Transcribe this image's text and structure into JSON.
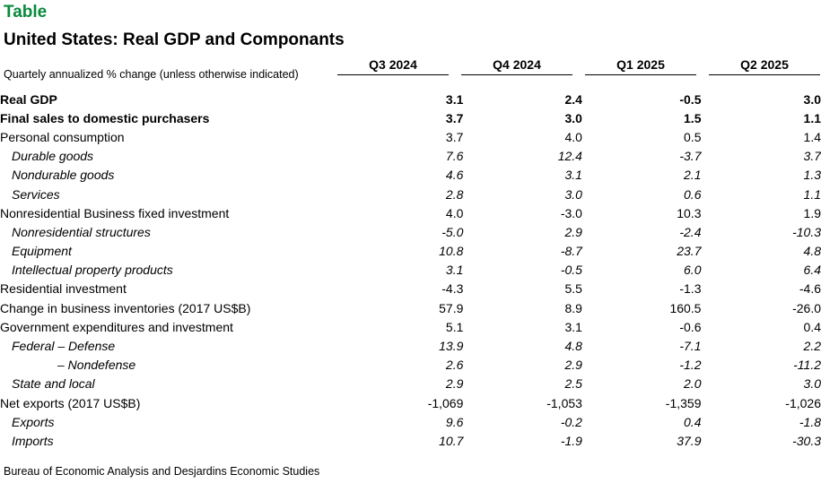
{
  "chart_data": {
    "type": "table",
    "kicker": "Table",
    "title": "United States: Real GDP and Componants",
    "units_note": "Quartely annualized % change (unless otherwise indicated)",
    "columns": [
      "Q3 2024",
      "Q4 2024",
      "Q1 2025",
      "Q2 2025"
    ],
    "rows": [
      {
        "label": "Real GDP",
        "style": "bold",
        "values": [
          "3.1",
          "2.4",
          "-0.5",
          "3.0"
        ]
      },
      {
        "label": "Final sales to domestic purchasers",
        "style": "bold",
        "values": [
          "3.7",
          "3.0",
          "1.5",
          "1.1"
        ]
      },
      {
        "label": "Personal consumption",
        "style": "normal",
        "values": [
          "3.7",
          "4.0",
          "0.5",
          "1.4"
        ]
      },
      {
        "label": "Durable goods",
        "style": "sub",
        "values": [
          "7.6",
          "12.4",
          "-3.7",
          "3.7"
        ]
      },
      {
        "label": "Nondurable goods",
        "style": "sub",
        "values": [
          "4.6",
          "3.1",
          "2.1",
          "1.3"
        ]
      },
      {
        "label": "Services",
        "style": "sub",
        "values": [
          "2.8",
          "3.0",
          "0.6",
          "1.1"
        ]
      },
      {
        "label": "Nonresidential Business fixed investment",
        "style": "normal",
        "values": [
          "4.0",
          "-3.0",
          "10.3",
          "1.9"
        ]
      },
      {
        "label": "Nonresidential structures",
        "style": "sub",
        "values": [
          "-5.0",
          "2.9",
          "-2.4",
          "-10.3"
        ]
      },
      {
        "label": "Equipment",
        "style": "sub",
        "values": [
          "10.8",
          "-8.7",
          "23.7",
          "4.8"
        ]
      },
      {
        "label": "Intellectual property products",
        "style": "sub",
        "values": [
          "3.1",
          "-0.5",
          "6.0",
          "6.4"
        ]
      },
      {
        "label": "Residential investment",
        "style": "normal",
        "values": [
          "-4.3",
          "5.5",
          "-1.3",
          "-4.6"
        ]
      },
      {
        "label": "Change in business inventories (2017 US$B)",
        "style": "normal",
        "values": [
          "57.9",
          "8.9",
          "160.5",
          "-26.0"
        ]
      },
      {
        "label": "Government expenditures and investment",
        "style": "normal",
        "values": [
          "5.1",
          "3.1",
          "-0.6",
          "0.4"
        ]
      },
      {
        "label": "Federal – Defense",
        "style": "sub",
        "values": [
          "13.9",
          "4.8",
          "-7.1",
          "2.2"
        ]
      },
      {
        "label": "– Nondefense",
        "style": "sub2",
        "values": [
          "2.6",
          "2.9",
          "-1.2",
          "-11.2"
        ]
      },
      {
        "label": "State and local",
        "style": "sub",
        "values": [
          "2.9",
          "2.5",
          "2.0",
          "3.0"
        ]
      },
      {
        "label": "Net exports (2017 US$B)",
        "style": "normal",
        "values": [
          "-1,069",
          "-1,053",
          "-1,359",
          "-1,026"
        ]
      },
      {
        "label": "Exports",
        "style": "sub",
        "values": [
          "9.6",
          "-0.2",
          "0.4",
          "-1.8"
        ]
      },
      {
        "label": "Imports",
        "style": "sub",
        "values": [
          "10.7",
          "-1.9",
          "37.9",
          "-30.3"
        ]
      }
    ],
    "source": "Bureau of Economic Analysis and Desjardins Economic Studies"
  }
}
